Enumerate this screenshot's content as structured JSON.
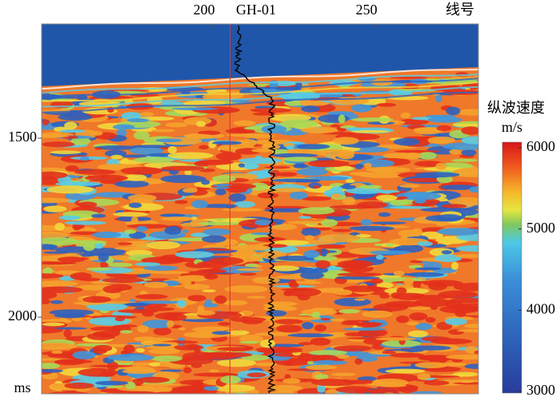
{
  "chart_data": {
    "type": "heatmap",
    "x_label": "线号",
    "y_label": "ms",
    "xlim": [
      147.5,
      282
    ],
    "xticks": [
      200,
      250
    ],
    "ylim": [
      1181,
      2214
    ],
    "yticks": [
      1500,
      2000
    ],
    "well": {
      "name": "GH-01",
      "x": 205.5,
      "color": "#e03030"
    },
    "colorbar": {
      "title": "纵波速度",
      "unit": "m/s",
      "clim": [
        2980,
        6070
      ],
      "ticks": [
        3000,
        4000,
        5000,
        6000
      ]
    }
  }
}
